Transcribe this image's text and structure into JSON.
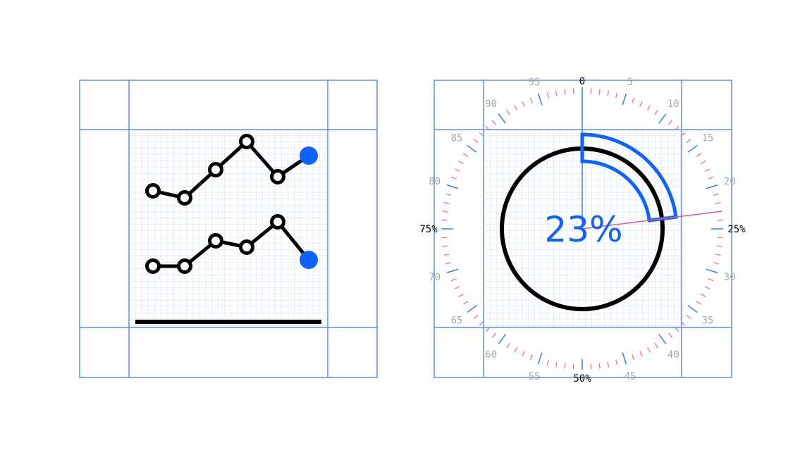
{
  "colors": {
    "frame": "#5b8def",
    "grid": "#cfe0fb",
    "ink": "#000000",
    "accent": "#0f62fe",
    "minor_tick": "#f0709a",
    "major_tick": "#3a7be6",
    "tick_label_gray": "#a8a8a8",
    "pointer": "#ee5396"
  },
  "left_panel": {
    "name": "line-chart-icon-spec",
    "series": [
      {
        "name": "upper",
        "values": [
          5,
          4,
          8,
          12,
          7,
          10
        ],
        "end_marker": "filled"
      },
      {
        "name": "lower",
        "values": [
          3,
          3,
          7,
          6,
          10,
          4
        ],
        "end_marker": "filled"
      }
    ]
  },
  "right_panel": {
    "name": "progress-dial-icon-spec",
    "progress": 0.23,
    "percent_label": "23%",
    "dial": {
      "minor_step": 1,
      "major_step": 5,
      "gray_labels": [
        "5",
        "10",
        "15",
        "20",
        "30",
        "35",
        "40",
        "45",
        "55",
        "60",
        "65",
        "70",
        "80",
        "85",
        "90",
        "95"
      ],
      "black_labels": {
        "0": "0",
        "25": "25%",
        "50": "50%",
        "75": "75%"
      }
    }
  }
}
